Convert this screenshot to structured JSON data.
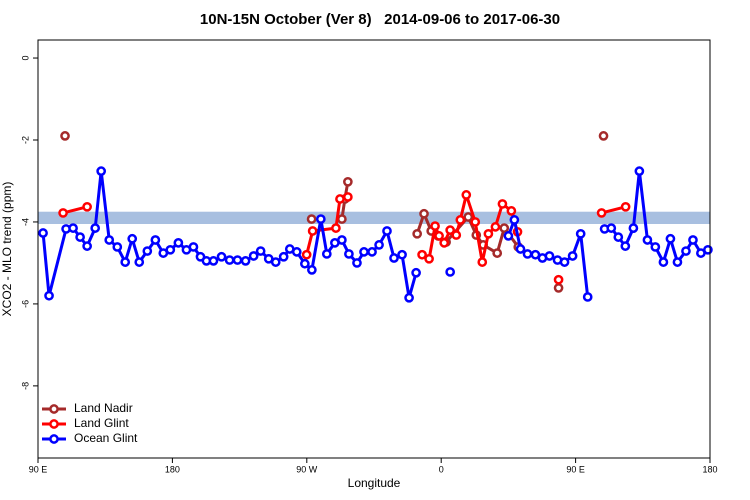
{
  "chart_data": {
    "type": "line",
    "title": "10N-15N October (Ver 8)   2014-09-06 to 2017-06-30",
    "x_label": "Longitude",
    "y_label": "XCO2 - MLO trend (ppm)",
    "xlim": [
      90,
      540
    ],
    "ylim": [
      -9.76,
      0.44
    ],
    "xticks": [
      {
        "value": 90,
        "label": "90 E"
      },
      180,
      {
        "value": 270,
        "label": "90 W"
      },
      {
        "value": 360,
        "label": "0"
      },
      {
        "value": 450,
        "label": "90 E"
      },
      {
        "value": 540,
        "label": "180"
      }
    ],
    "yticks": [
      0,
      -2,
      -4,
      -6,
      -8
    ],
    "band": {
      "ymin": -4.05,
      "ymax": -3.75,
      "color": "#a8bfe0"
    },
    "legend": "bottom-left",
    "series": [
      {
        "name": "Land Nadir",
        "color": "#a52a2a",
        "x": [
          108.1,
          null,
          273.2,
          null,
          293.5,
          295.5,
          297.5,
          null,
          343.9,
          348.5,
          353.3,
          358.0,
          363.3,
          378.1,
          383.5,
          388.1,
          397.5,
          402.2,
          411.6,
          null,
          438.6,
          null,
          468.7
        ],
        "values": [
          -1.9,
          null,
          -3.93,
          null,
          -3.93,
          -3.44,
          -3.02,
          null,
          -4.29,
          -3.8,
          -4.22,
          -4.34,
          -4.49,
          -3.88,
          -4.32,
          -4.56,
          -4.76,
          -4.15,
          -4.61,
          null,
          -5.61,
          null,
          -1.9
        ]
      },
      {
        "name": "Land Glint",
        "color": "#ff0000",
        "x": [
          106.8,
          122.9,
          null,
          269.9,
          273.9,
          289.5,
          292.2,
          297.5,
          null,
          347.2,
          351.9,
          355.9,
          358.6,
          362.0,
          366.0,
          370.1,
          372.8,
          376.8,
          382.8,
          387.5,
          391.6,
          396.3,
          401.0,
          407.0,
          411.1,
          null,
          438.6,
          null,
          467.4,
          483.5
        ],
        "values": [
          -3.78,
          -3.63,
          null,
          -4.8,
          -4.22,
          -4.15,
          -3.44,
          -3.39,
          null,
          -4.8,
          -4.9,
          -4.1,
          -4.34,
          -4.51,
          -4.2,
          -4.32,
          -3.95,
          -3.34,
          -4.0,
          -4.98,
          -4.29,
          -4.12,
          -3.56,
          -3.73,
          -4.24,
          null,
          -5.41,
          null,
          -3.78,
          -3.63
        ]
      },
      {
        "name": "Ocean Glint",
        "color": "#0000ff",
        "x": [
          93.4,
          97.4,
          108.8,
          113.5,
          118.2,
          122.9,
          128.3,
          132.3,
          137.7,
          143.1,
          148.4,
          153.1,
          157.8,
          163.2,
          168.6,
          173.9,
          178.6,
          184.0,
          189.4,
          194.1,
          198.8,
          202.8,
          207.5,
          212.9,
          218.3,
          223.6,
          229.0,
          234.4,
          239.1,
          244.5,
          249.2,
          254.5,
          258.6,
          263.3,
          268.7,
          273.4,
          279.4,
          283.4,
          288.8,
          293.5,
          298.2,
          303.6,
          308.3,
          313.7,
          318.4,
          323.7,
          328.4,
          333.8,
          338.5,
          343.2,
          null,
          366.0,
          null,
          405.0,
          409.0,
          413.1,
          417.8,
          423.1,
          427.8,
          432.5,
          437.9,
          442.6,
          448.0,
          453.4,
          458.1,
          null,
          469.4,
          473.9,
          478.6,
          483.3,
          488.7,
          492.7,
          498.1,
          503.4,
          508.8,
          513.5,
          518.2,
          523.9,
          528.6,
          533.9,
          538.6
        ],
        "values": [
          -4.27,
          -5.8,
          -4.17,
          -4.15,
          -4.37,
          -4.59,
          -4.15,
          -2.76,
          -4.44,
          -4.61,
          -4.98,
          -4.41,
          -4.98,
          -4.71,
          -4.44,
          -4.76,
          -4.68,
          -4.51,
          -4.68,
          -4.61,
          -4.85,
          -4.95,
          -4.95,
          -4.85,
          -4.93,
          -4.93,
          -4.95,
          -4.83,
          -4.71,
          -4.9,
          -4.98,
          -4.85,
          -4.66,
          -4.73,
          -5.02,
          -5.17,
          -3.93,
          -4.78,
          -4.51,
          -4.44,
          -4.78,
          -5.0,
          -4.73,
          -4.73,
          -4.56,
          -4.22,
          -4.88,
          -4.8,
          -5.85,
          -5.24,
          null,
          -5.22,
          null,
          -4.34,
          -3.95,
          -4.66,
          -4.78,
          -4.8,
          -4.88,
          -4.83,
          -4.93,
          -4.98,
          -4.83,
          -4.29,
          -5.83,
          null,
          -4.17,
          -4.15,
          -4.37,
          -4.59,
          -4.15,
          -2.76,
          -4.44,
          -4.61,
          -4.98,
          -4.41,
          -4.98,
          -4.71,
          -4.44,
          -4.76,
          -4.68
        ]
      }
    ]
  }
}
